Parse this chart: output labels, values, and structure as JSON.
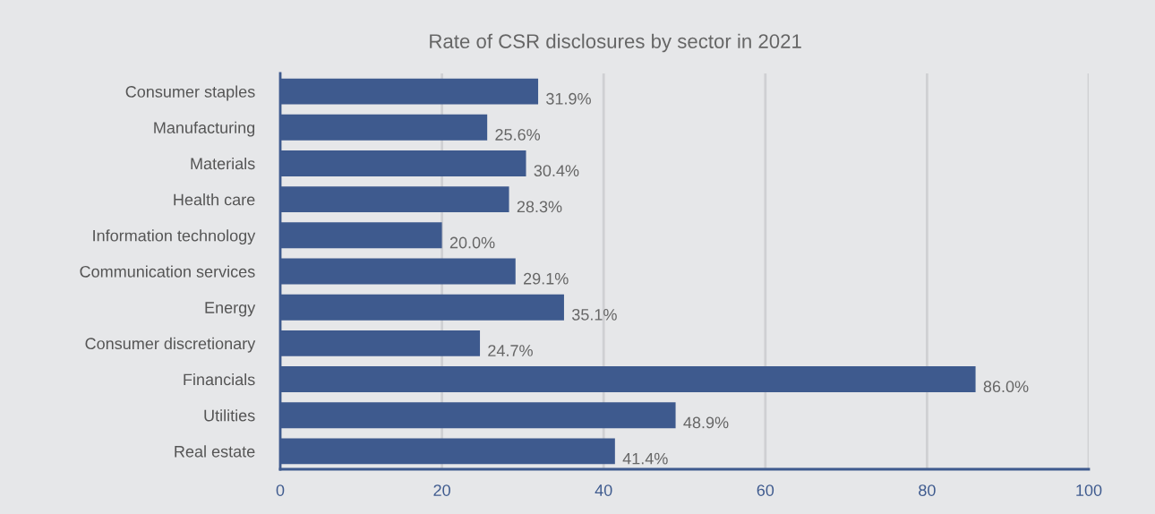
{
  "chart_data": {
    "type": "bar",
    "orientation": "horizontal",
    "title": "Rate of CSR disclosures by sector in 2021",
    "categories": [
      "Consumer staples",
      "Manufacturing",
      "Materials",
      "Health care",
      "Information technology",
      "Communication services",
      "Energy",
      "Consumer discretionary",
      "Financials",
      "Utilities",
      "Real estate"
    ],
    "values": [
      31.9,
      25.6,
      30.4,
      28.3,
      20.0,
      29.1,
      35.1,
      24.7,
      86.0,
      48.9,
      41.4
    ],
    "value_labels": [
      "31.9%",
      "25.6%",
      "30.4%",
      "28.3%",
      "20.0%",
      "29.1%",
      "35.1%",
      "24.7%",
      "86.0%",
      "48.9%",
      "41.4%"
    ],
    "color": "#3e5a8e",
    "xlim": [
      0,
      100
    ],
    "xticks": [
      0,
      20,
      40,
      60,
      80,
      100
    ],
    "grid": "x",
    "legend": false
  }
}
